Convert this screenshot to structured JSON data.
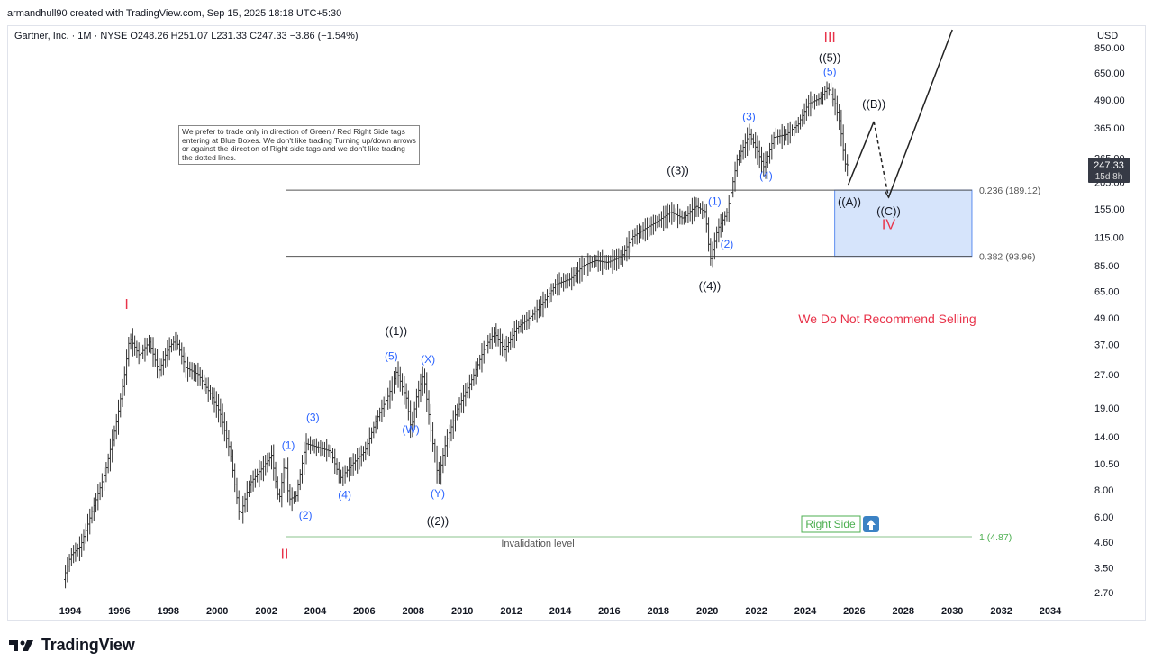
{
  "header": {
    "created_by": "armandhull90 created with TradingView.com, Sep 15, 2025 18:18 UTC+5:30"
  },
  "symbol_info": "Gartner, Inc. · 1M · NYSE   O248.26  H251.07  L231.33  C247.33  −3.86 (−1.54%)",
  "currency": "USD",
  "last_price": {
    "value": "247.33",
    "countdown": "15d 8h"
  },
  "note": "We prefer to trade only in direction of Green / Red Right Side tags entering at Blue Boxes. We don't like trading Turning up/down arrows or against the direction of Right side tags and we don't like trading the dotted lines.",
  "recommendation": "We Do Not Recommend Selling",
  "right_side_tag": "Right Side",
  "invalidation_label": "Invalidation level",
  "footer": {
    "logo_text": "TradingView"
  },
  "colors": {
    "red": "#e8334a",
    "blue": "#2962ff",
    "green": "#4caf50",
    "box_fill": "#d6e4fb",
    "box_stroke": "#5b8def",
    "price_tag": "#363a45"
  },
  "chart_data": {
    "type": "candlestick",
    "scale": "log",
    "x_ticks": [
      "1994",
      "1996",
      "1998",
      "2000",
      "2002",
      "2004",
      "2006",
      "2008",
      "2010",
      "2012",
      "2014",
      "2016",
      "2018",
      "2020",
      "2022",
      "2024",
      "2026",
      "2028",
      "2030",
      "2032",
      "2034"
    ],
    "y_ticks": [
      "850.00",
      "650.00",
      "490.00",
      "365.00",
      "265.00",
      "205.00",
      "155.00",
      "115.00",
      "85.00",
      "65.00",
      "49.00",
      "37.00",
      "27.00",
      "19.00",
      "14.00",
      "10.50",
      "8.00",
      "6.00",
      "4.60",
      "3.50",
      "2.70"
    ],
    "y_range": [
      2.4,
      900
    ],
    "x_range": [
      1993.5,
      2035.5
    ],
    "price_path": [
      [
        1993.8,
        3.1
      ],
      [
        1994.1,
        4.0
      ],
      [
        1994.5,
        4.4
      ],
      [
        1995.0,
        6.5
      ],
      [
        1995.5,
        9.5
      ],
      [
        1996.0,
        17
      ],
      [
        1996.3,
        27
      ],
      [
        1996.5,
        40
      ],
      [
        1996.9,
        33
      ],
      [
        1997.3,
        38
      ],
      [
        1997.7,
        28
      ],
      [
        1998.1,
        36
      ],
      [
        1998.4,
        39
      ],
      [
        1998.8,
        29
      ],
      [
        1999.3,
        27
      ],
      [
        1999.8,
        22
      ],
      [
        2000.2,
        18
      ],
      [
        2000.6,
        12
      ],
      [
        2001.0,
        6.0
      ],
      [
        2001.4,
        8.5
      ],
      [
        2001.9,
        10
      ],
      [
        2002.3,
        11.5
      ],
      [
        2002.6,
        7.0
      ],
      [
        2002.85,
        11.0
      ],
      [
        2003.0,
        7.2
      ],
      [
        2003.3,
        7.5
      ],
      [
        2003.7,
        13
      ],
      [
        2004.2,
        12.5
      ],
      [
        2004.7,
        12
      ],
      [
        2005.1,
        9
      ],
      [
        2005.6,
        10.5
      ],
      [
        2006.1,
        12
      ],
      [
        2006.6,
        17
      ],
      [
        2007.1,
        22
      ],
      [
        2007.4,
        28
      ],
      [
        2007.8,
        21
      ],
      [
        2008.0,
        15
      ],
      [
        2008.2,
        21
      ],
      [
        2008.5,
        27
      ],
      [
        2008.8,
        15
      ],
      [
        2009.1,
        9.0
      ],
      [
        2009.4,
        13
      ],
      [
        2009.9,
        19
      ],
      [
        2010.5,
        26
      ],
      [
        2011.0,
        36
      ],
      [
        2011.4,
        42
      ],
      [
        2011.8,
        35
      ],
      [
        2012.3,
        44
      ],
      [
        2012.9,
        50
      ],
      [
        2013.4,
        58
      ],
      [
        2013.9,
        70
      ],
      [
        2014.5,
        74
      ],
      [
        2015.0,
        85
      ],
      [
        2015.5,
        90
      ],
      [
        2016.0,
        88
      ],
      [
        2016.6,
        94
      ],
      [
        2017.0,
        115
      ],
      [
        2017.5,
        125
      ],
      [
        2018.0,
        135
      ],
      [
        2018.6,
        150
      ],
      [
        2019.1,
        140
      ],
      [
        2019.6,
        160
      ],
      [
        2020.0,
        150
      ],
      [
        2020.2,
        90
      ],
      [
        2020.5,
        125
      ],
      [
        2020.9,
        150
      ],
      [
        2021.3,
        260
      ],
      [
        2021.8,
        340
      ],
      [
        2022.1,
        290
      ],
      [
        2022.4,
        240
      ],
      [
        2022.8,
        330
      ],
      [
        2023.3,
        340
      ],
      [
        2023.8,
        380
      ],
      [
        2024.2,
        470
      ],
      [
        2024.7,
        500
      ],
      [
        2025.0,
        560
      ],
      [
        2025.3,
        470
      ],
      [
        2025.5,
        380
      ],
      [
        2025.7,
        250
      ],
      [
        2025.75,
        247
      ]
    ]
  },
  "levels": [
    {
      "label": "0.236 (189.12)",
      "value": 189.12
    },
    {
      "label": "0.382 (93.96)",
      "value": 93.96
    },
    {
      "label": "1 (4.87)",
      "value": 4.87
    }
  ],
  "wave_labels": [
    {
      "text": "I",
      "color": "red"
    },
    {
      "text": "II",
      "color": "red"
    },
    {
      "text": "III",
      "color": "red"
    },
    {
      "text": "IV",
      "color": "red"
    },
    {
      "text": "((1))",
      "color": "black"
    },
    {
      "text": "((2))",
      "color": "black"
    },
    {
      "text": "((3))",
      "color": "black"
    },
    {
      "text": "((4))",
      "color": "black"
    },
    {
      "text": "((5))",
      "color": "black"
    },
    {
      "text": "((A))",
      "color": "black"
    },
    {
      "text": "((B))",
      "color": "black"
    },
    {
      "text": "((C))",
      "color": "black"
    },
    {
      "text": "(1)",
      "color": "blue"
    },
    {
      "text": "(2)",
      "color": "blue"
    },
    {
      "text": "(3)",
      "color": "blue"
    },
    {
      "text": "(4)",
      "color": "blue"
    },
    {
      "text": "(5)",
      "color": "blue"
    },
    {
      "text": "(W)",
      "color": "blue"
    },
    {
      "text": "(X)",
      "color": "blue"
    },
    {
      "text": "(Y)",
      "color": "blue"
    },
    {
      "text": "(1)",
      "color": "blue"
    },
    {
      "text": "(2)",
      "color": "blue"
    },
    {
      "text": "(3)",
      "color": "blue"
    },
    {
      "text": "(4)",
      "color": "blue"
    },
    {
      "text": "(5)",
      "color": "blue"
    }
  ]
}
